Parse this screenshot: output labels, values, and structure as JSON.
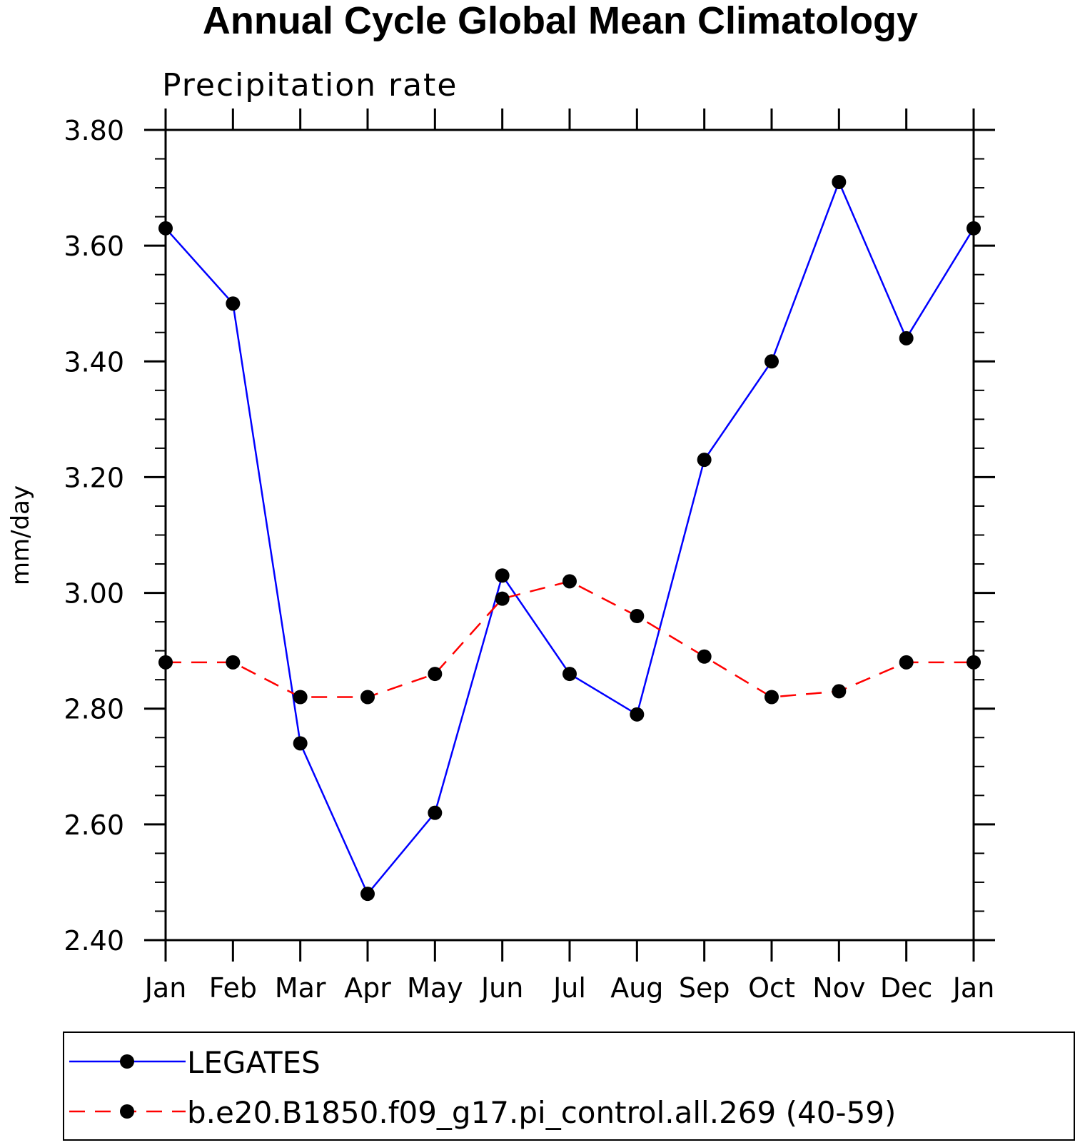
{
  "chart_data": {
    "type": "line",
    "title": "Annual Cycle Global Mean Climatology",
    "subtitle": "Precipitation rate",
    "ylabel": "mm/day",
    "xlabel": "",
    "categories": [
      "Jan",
      "Feb",
      "Mar",
      "Apr",
      "May",
      "Jun",
      "Jul",
      "Aug",
      "Sep",
      "Oct",
      "Nov",
      "Dec",
      "Jan"
    ],
    "ylim": [
      2.4,
      3.8
    ],
    "yticks": [
      "2.40",
      "2.60",
      "2.80",
      "3.00",
      "3.20",
      "3.40",
      "3.60",
      "3.80"
    ],
    "grid": false,
    "legend_position": "bottom",
    "series": [
      {
        "name": "LEGATES",
        "color": "#0000ff",
        "style": "solid",
        "marker": "filled-circle",
        "values": [
          3.63,
          3.5,
          2.74,
          2.48,
          2.62,
          3.03,
          2.86,
          2.79,
          3.23,
          3.4,
          3.71,
          3.44,
          3.63
        ]
      },
      {
        "name": "b.e20.B1850.f09_g17.pi_control.all.269 (40-59)",
        "color": "#ff0000",
        "style": "dashed",
        "marker": "filled-circle",
        "values": [
          2.88,
          2.88,
          2.82,
          2.82,
          2.86,
          2.99,
          3.02,
          2.96,
          2.89,
          2.82,
          2.83,
          2.88,
          2.88
        ]
      }
    ]
  }
}
